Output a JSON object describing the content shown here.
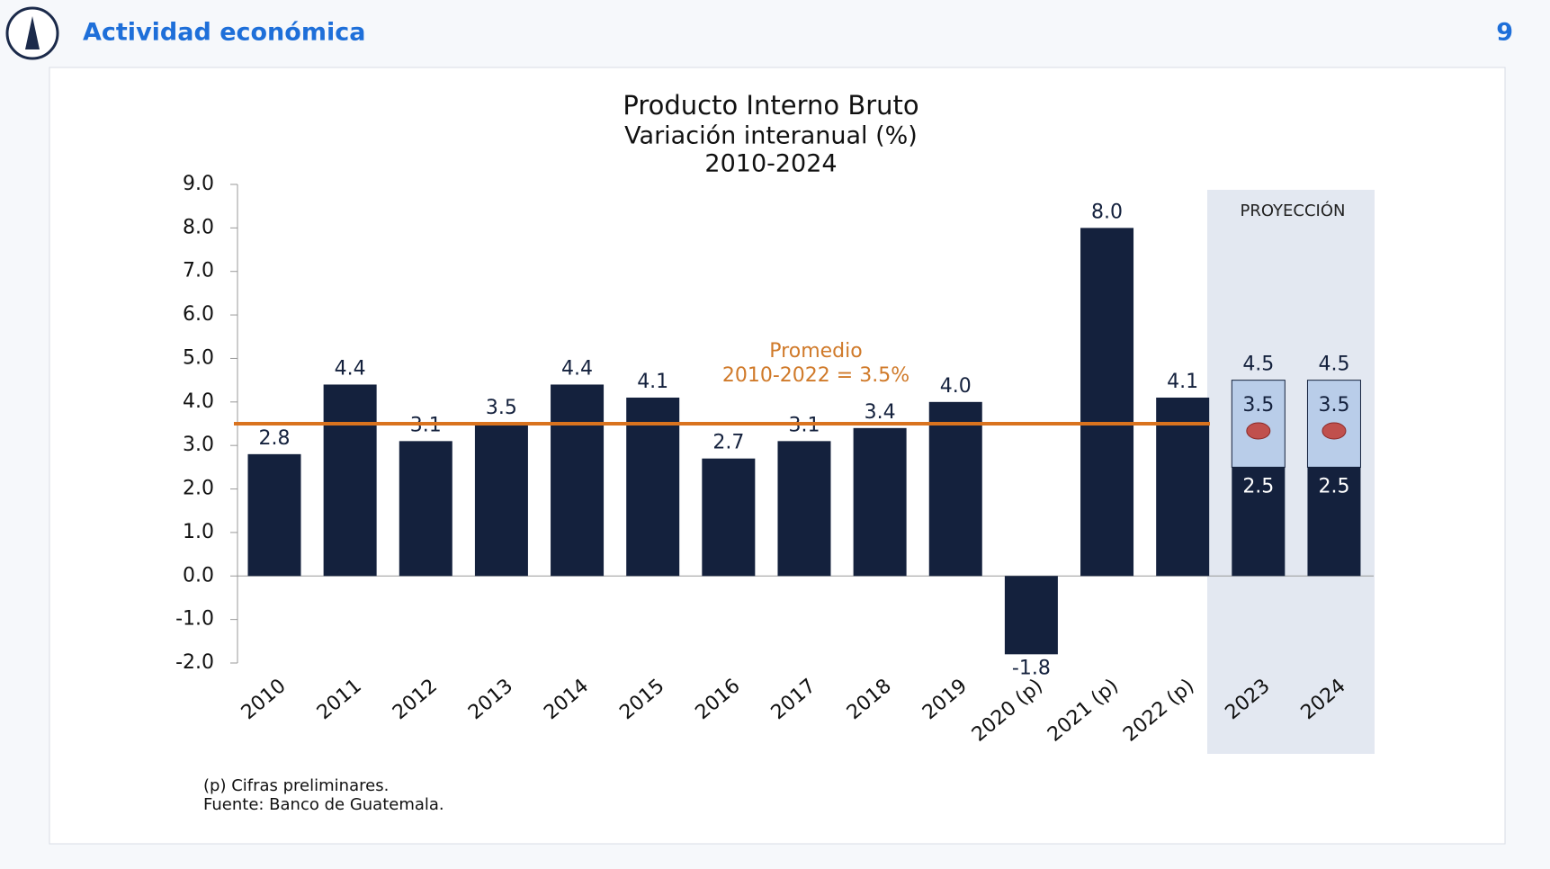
{
  "header": {
    "title": "Actividad económica",
    "page_number": "9"
  },
  "chart_data": {
    "type": "bar",
    "title_lines": [
      "Producto Interno Bruto",
      "Variación interanual (%)",
      "2010-2024"
    ],
    "categories": [
      "2010",
      "2011",
      "2012",
      "2013",
      "2014",
      "2015",
      "2016",
      "2017",
      "2018",
      "2019",
      "2020 (p)",
      "2021 (p)",
      "2022 (p)",
      "2023",
      "2024"
    ],
    "values": [
      2.8,
      4.4,
      3.1,
      3.5,
      4.4,
      4.1,
      2.7,
      3.1,
      3.4,
      4.0,
      -1.8,
      8.0,
      4.1,
      null,
      null
    ],
    "value_labels": [
      "2.8",
      "4.4",
      "3.1",
      "3.5",
      "4.4",
      "4.1",
      "2.7",
      "3.1",
      "3.4",
      "4.0",
      "-1.8",
      "8.0",
      "4.1",
      null,
      null
    ],
    "color": "#14213d",
    "projection": {
      "label": "PROYECCIÓN",
      "low": [
        null,
        null,
        null,
        null,
        null,
        null,
        null,
        null,
        null,
        null,
        null,
        null,
        null,
        2.5,
        2.5
      ],
      "central": [
        null,
        null,
        null,
        null,
        null,
        null,
        null,
        null,
        null,
        null,
        null,
        null,
        null,
        3.5,
        3.5
      ],
      "high": [
        null,
        null,
        null,
        null,
        null,
        null,
        null,
        null,
        null,
        null,
        null,
        null,
        null,
        4.5,
        4.5
      ],
      "range_color": "#b9cde9",
      "marker_color": "#c0504d"
    },
    "average": {
      "label_lines": [
        "Promedio",
        "2010-2022 = 3.5%"
      ],
      "value": 3.5,
      "color": "#d9731f"
    },
    "ylim": [
      -2,
      9
    ],
    "yticks": [
      {
        "value": -2,
        "label": "-2.0"
      },
      {
        "value": -1,
        "label": "-1.0"
      },
      {
        "value": 0,
        "label": "0.0"
      },
      {
        "value": 1,
        "label": "1.0"
      },
      {
        "value": 2,
        "label": "2.0"
      },
      {
        "value": 3,
        "label": "3.0"
      },
      {
        "value": 4,
        "label": "4.0"
      },
      {
        "value": 5,
        "label": "5.0"
      },
      {
        "value": 6,
        "label": "6.0"
      },
      {
        "value": 7,
        "label": "7.0"
      },
      {
        "value": 8,
        "label": "8.0"
      },
      {
        "value": 9,
        "label": "9.0"
      }
    ],
    "grid": false,
    "notes": [
      "(p) Cifras preliminares.",
      "Fuente: Banco de Guatemala."
    ]
  }
}
